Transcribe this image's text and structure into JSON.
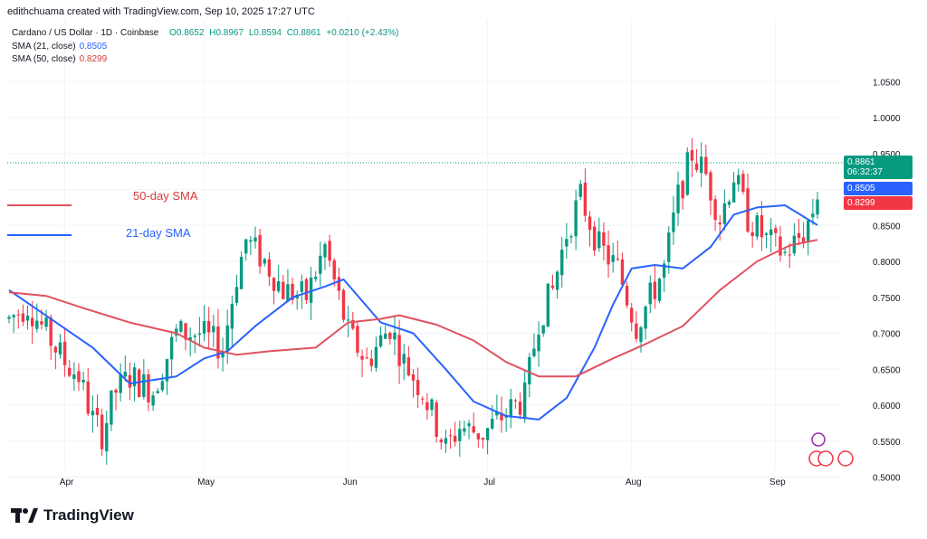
{
  "header": {
    "credit": "edithchuama created with TradingView.com, Sep 10, 2025 17:27 UTC"
  },
  "legend": {
    "symbol": "Cardano / US Dollar · 1D · Coinbase",
    "open": "O0.8652",
    "high": "H0.8967",
    "low": "L0.8594",
    "close": "C0.8861",
    "change": "+0.0210 (+2.43%)",
    "sma21_label": "SMA (21, close)",
    "sma21_value": "0.8505",
    "sma50_label": "SMA (50, close)",
    "sma50_value": "0.8299"
  },
  "price_tags": {
    "last_price": "0.8861",
    "countdown": "06:32:37",
    "sma21": "0.8505",
    "sma50": "0.8299"
  },
  "annotations": {
    "sma50": "50-day SMA",
    "sma21": "21-day SMA"
  },
  "brand": {
    "name": "TradingView"
  },
  "colors": {
    "up": "#089981",
    "down": "#f23645",
    "sma21": "#2962ff",
    "sma50": "#e05260",
    "grid": "#f0f3fa",
    "last_price_tag": "#089981"
  },
  "chart_data": {
    "type": "candlestick",
    "title": "Cardano / US Dollar · 1D · Coinbase",
    "y_ticks": [
      "1.0500",
      "1.0000",
      "0.9500",
      "0.9000",
      "0.8500",
      "0.8000",
      "0.7500",
      "0.7000",
      "0.6500",
      "0.6000",
      "0.5500",
      "0.5000"
    ],
    "ylim": [
      0.455,
      1.075
    ],
    "x_ticks": [
      {
        "label": "Apr",
        "date": "2025-04-01"
      },
      {
        "label": "May",
        "date": "2025-05-01"
      },
      {
        "label": "Jun",
        "date": "2025-06-01"
      },
      {
        "label": "Jul",
        "date": "2025-07-01"
      },
      {
        "label": "Aug",
        "date": "2025-08-01"
      },
      {
        "label": "Sep",
        "date": "2025-09-01"
      }
    ],
    "start_date": "2025-03-20",
    "end_date": "2025-09-10",
    "grid": true,
    "key_points": {
      "open": 0.8652,
      "high": 0.8967,
      "low": 0.8594,
      "close": 0.8861,
      "sma21_last": 0.8505,
      "sma50_last": 0.8299
    },
    "close_path": [
      [
        "2025-03-20",
        0.72
      ],
      [
        "2025-03-24",
        0.74
      ],
      [
        "2025-03-27",
        0.71
      ],
      [
        "2025-04-01",
        0.66
      ],
      [
        "2025-04-04",
        0.64
      ],
      [
        "2025-04-07",
        0.58
      ],
      [
        "2025-04-09",
        0.56
      ],
      [
        "2025-04-12",
        0.62
      ],
      [
        "2025-04-15",
        0.64
      ],
      [
        "2025-04-20",
        0.62
      ],
      [
        "2025-04-25",
        0.7
      ],
      [
        "2025-04-30",
        0.7
      ],
      [
        "2025-05-05",
        0.68
      ],
      [
        "2025-05-08",
        0.78
      ],
      [
        "2025-05-10",
        0.83
      ],
      [
        "2025-05-14",
        0.8
      ],
      [
        "2025-05-18",
        0.76
      ],
      [
        "2025-05-23",
        0.75
      ],
      [
        "2025-05-27",
        0.82
      ],
      [
        "2025-06-01",
        0.7
      ],
      [
        "2025-06-05",
        0.66
      ],
      [
        "2025-06-10",
        0.71
      ],
      [
        "2025-06-13",
        0.66
      ],
      [
        "2025-06-17",
        0.62
      ],
      [
        "2025-06-22",
        0.54
      ],
      [
        "2025-06-25",
        0.57
      ],
      [
        "2025-06-30",
        0.56
      ],
      [
        "2025-07-05",
        0.59
      ],
      [
        "2025-07-09",
        0.61
      ],
      [
        "2025-07-12",
        0.72
      ],
      [
        "2025-07-15",
        0.76
      ],
      [
        "2025-07-18",
        0.84
      ],
      [
        "2025-07-21",
        0.89
      ],
      [
        "2025-07-25",
        0.82
      ],
      [
        "2025-07-29",
        0.79
      ],
      [
        "2025-08-02",
        0.71
      ],
      [
        "2025-08-05",
        0.75
      ],
      [
        "2025-08-08",
        0.79
      ],
      [
        "2025-08-11",
        0.89
      ],
      [
        "2025-08-14",
        0.95
      ],
      [
        "2025-08-17",
        0.92
      ],
      [
        "2025-08-20",
        0.86
      ],
      [
        "2025-08-23",
        0.92
      ],
      [
        "2025-08-26",
        0.86
      ],
      [
        "2025-08-30",
        0.83
      ],
      [
        "2025-09-03",
        0.81
      ],
      [
        "2025-09-07",
        0.84
      ],
      [
        "2025-09-10",
        0.8861
      ]
    ],
    "series": [
      {
        "name": "SMA (21, close)",
        "color": "#2962ff",
        "points": [
          [
            "2025-03-20",
            0.76
          ],
          [
            "2025-04-07",
            0.68
          ],
          [
            "2025-04-15",
            0.63
          ],
          [
            "2025-04-25",
            0.64
          ],
          [
            "2025-05-01",
            0.665
          ],
          [
            "2025-05-06",
            0.675
          ],
          [
            "2025-05-12",
            0.71
          ],
          [
            "2025-05-20",
            0.75
          ],
          [
            "2025-05-27",
            0.765
          ],
          [
            "2025-05-31",
            0.775
          ],
          [
            "2025-06-08",
            0.715
          ],
          [
            "2025-06-15",
            0.7
          ],
          [
            "2025-06-22",
            0.65
          ],
          [
            "2025-06-28",
            0.605
          ],
          [
            "2025-07-05",
            0.585
          ],
          [
            "2025-07-12",
            0.58
          ],
          [
            "2025-07-18",
            0.61
          ],
          [
            "2025-07-24",
            0.68
          ],
          [
            "2025-07-28",
            0.74
          ],
          [
            "2025-08-01",
            0.79
          ],
          [
            "2025-08-06",
            0.795
          ],
          [
            "2025-08-12",
            0.79
          ],
          [
            "2025-08-18",
            0.82
          ],
          [
            "2025-08-23",
            0.865
          ],
          [
            "2025-08-28",
            0.875
          ],
          [
            "2025-09-03",
            0.878
          ],
          [
            "2025-09-10",
            0.8505
          ]
        ]
      },
      {
        "name": "SMA (50, close)",
        "color": "#e05260",
        "points": [
          [
            "2025-03-20",
            0.757
          ],
          [
            "2025-03-28",
            0.752
          ],
          [
            "2025-04-05",
            0.735
          ],
          [
            "2025-04-15",
            0.715
          ],
          [
            "2025-04-25",
            0.7
          ],
          [
            "2025-05-01",
            0.68
          ],
          [
            "2025-05-08",
            0.67
          ],
          [
            "2025-05-15",
            0.675
          ],
          [
            "2025-05-25",
            0.68
          ],
          [
            "2025-06-01",
            0.715
          ],
          [
            "2025-06-08",
            0.72
          ],
          [
            "2025-06-12",
            0.725
          ],
          [
            "2025-06-20",
            0.712
          ],
          [
            "2025-06-28",
            0.69
          ],
          [
            "2025-07-05",
            0.66
          ],
          [
            "2025-07-12",
            0.64
          ],
          [
            "2025-07-20",
            0.64
          ],
          [
            "2025-07-28",
            0.665
          ],
          [
            "2025-08-04",
            0.685
          ],
          [
            "2025-08-12",
            0.71
          ],
          [
            "2025-08-20",
            0.76
          ],
          [
            "2025-08-28",
            0.8
          ],
          [
            "2025-09-04",
            0.822
          ],
          [
            "2025-09-10",
            0.8299
          ]
        ]
      }
    ]
  }
}
